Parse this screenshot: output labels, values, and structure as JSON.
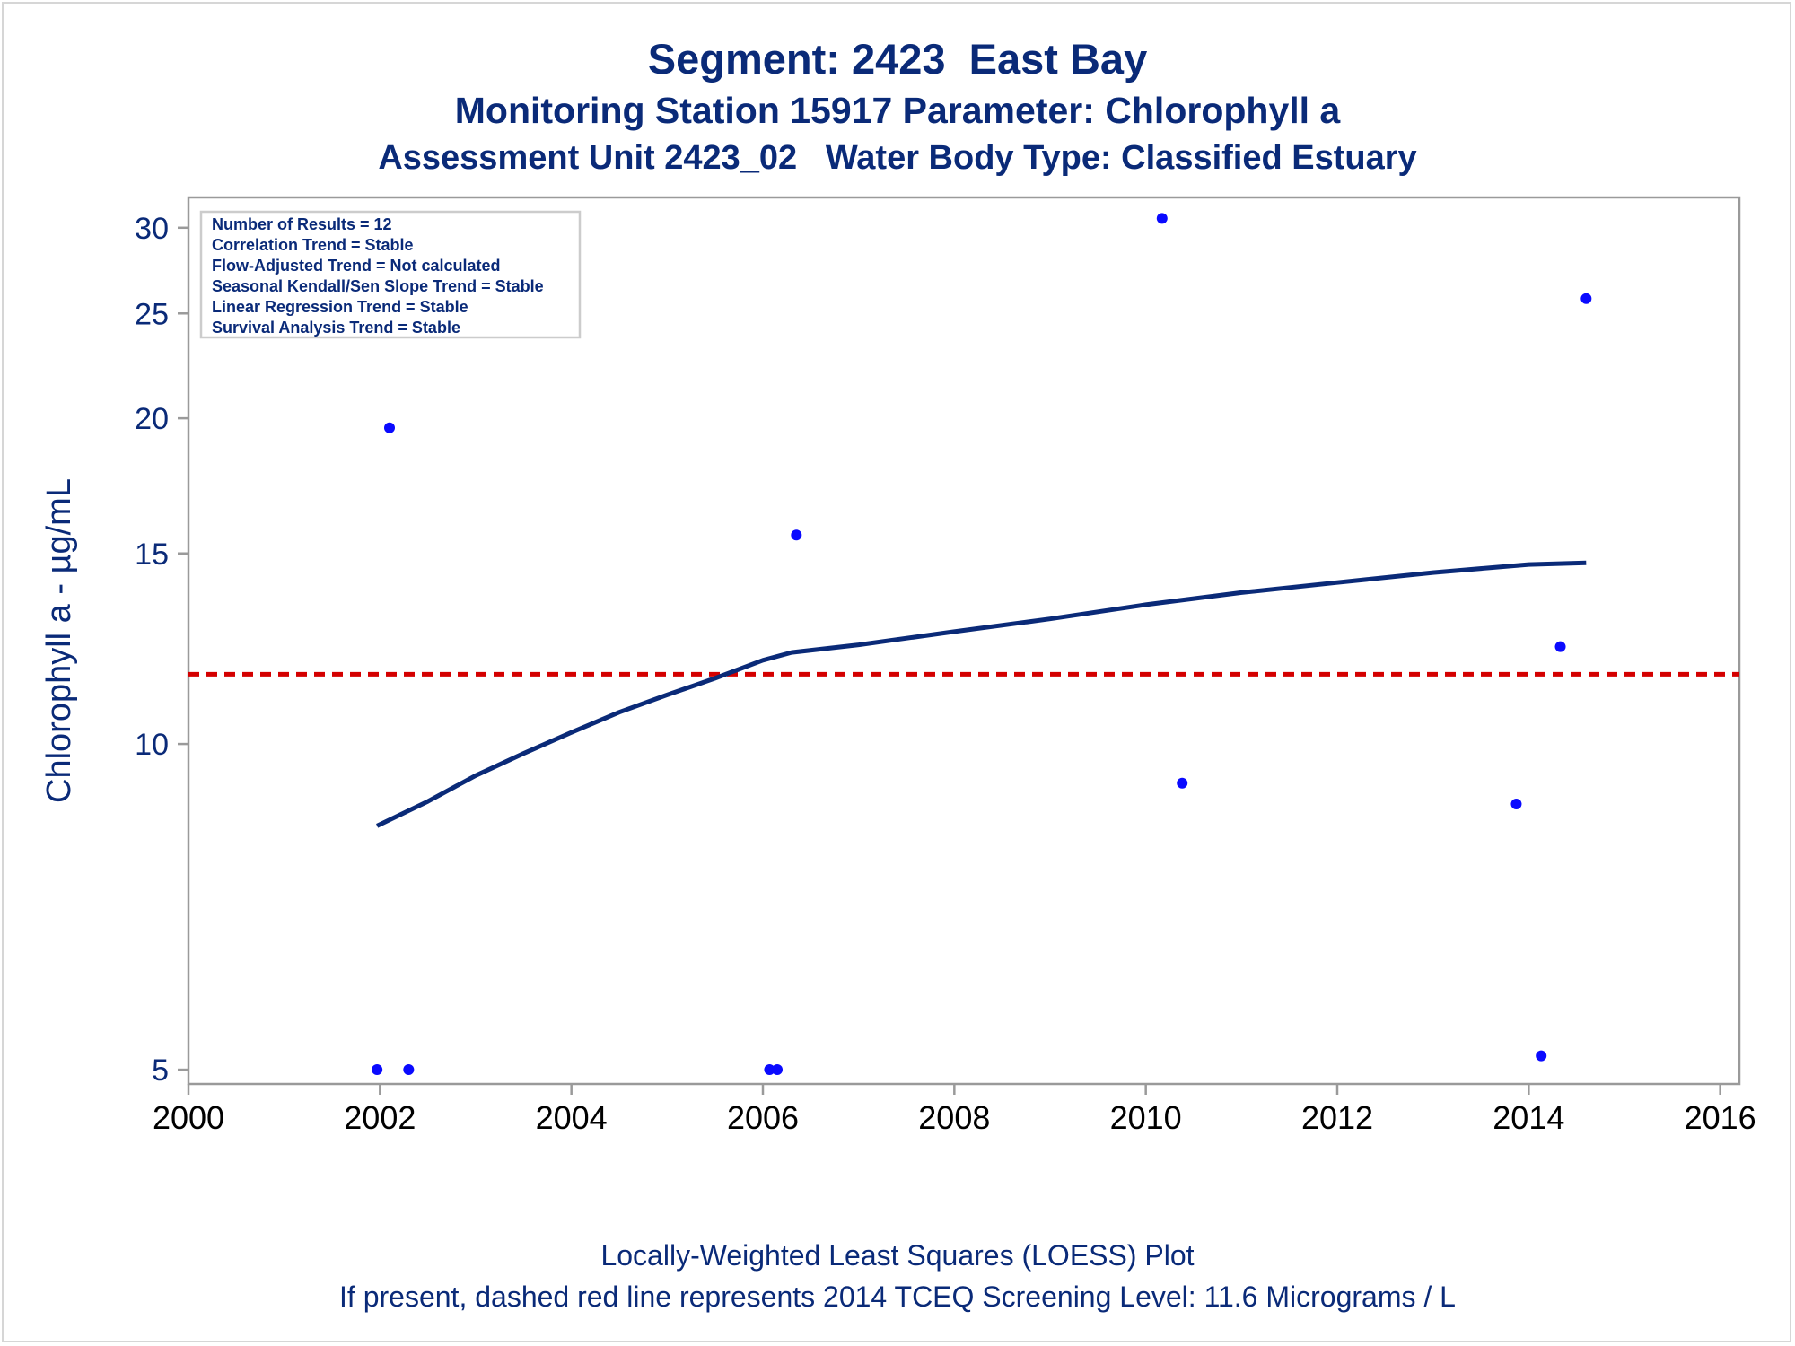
{
  "titles": {
    "line1": "Segment: 2423  East Bay",
    "line2": "Monitoring Station 15917 Parameter: Chlorophyll a",
    "line3": "Assessment Unit 2423_02   Water Body Type: Classified Estuary"
  },
  "footnotes": {
    "line1": "Locally-Weighted Least Squares (LOESS) Plot",
    "line2": "If present, dashed red line represents 2014 TCEQ Screening Level: 11.6 Micrograms / L"
  },
  "stats_box": [
    "Number of Results = 12",
    "Correlation Trend = Stable",
    "Flow-Adjusted Trend = Not calculated",
    "Seasonal Kendall/Sen Slope Trend = Stable",
    "Linear Regression Trend = Stable",
    "Survival Analysis Trend = Stable"
  ],
  "colors": {
    "text": "#0a2a78",
    "points": "#0a0aff",
    "loess": "#0a2a78",
    "screening": "#d40000",
    "axis": "#9a9a9a"
  },
  "chart_data": {
    "type": "scatter",
    "ylabel": "Chlorophyll a -  µg/mL",
    "xlabel": "",
    "x_scale": "linear",
    "y_scale": "log",
    "xlim": [
      2000,
      2016.2
    ],
    "ylim": [
      4.85,
      32
    ],
    "x_ticks": [
      2000,
      2002,
      2004,
      2006,
      2008,
      2010,
      2012,
      2014,
      2016
    ],
    "y_ticks": [
      5,
      10,
      15,
      20,
      25,
      30
    ],
    "grid": false,
    "legend": "inset top-left",
    "points": [
      {
        "x": 2001.97,
        "y": 5.0
      },
      {
        "x": 2002.1,
        "y": 19.6
      },
      {
        "x": 2002.3,
        "y": 5.0
      },
      {
        "x": 2006.07,
        "y": 5.0
      },
      {
        "x": 2006.15,
        "y": 5.0
      },
      {
        "x": 2006.35,
        "y": 15.6
      },
      {
        "x": 2010.17,
        "y": 30.6
      },
      {
        "x": 2010.38,
        "y": 9.2
      },
      {
        "x": 2013.87,
        "y": 8.8
      },
      {
        "x": 2014.13,
        "y": 5.15
      },
      {
        "x": 2014.33,
        "y": 12.3
      },
      {
        "x": 2014.6,
        "y": 25.8
      }
    ],
    "loess": [
      {
        "x": 2001.97,
        "y": 8.4
      },
      {
        "x": 2002.5,
        "y": 8.85
      },
      {
        "x": 2003.0,
        "y": 9.35
      },
      {
        "x": 2003.5,
        "y": 9.8
      },
      {
        "x": 2004.0,
        "y": 10.25
      },
      {
        "x": 2004.5,
        "y": 10.7
      },
      {
        "x": 2005.0,
        "y": 11.1
      },
      {
        "x": 2005.5,
        "y": 11.5
      },
      {
        "x": 2006.0,
        "y": 11.95
      },
      {
        "x": 2006.3,
        "y": 12.15
      },
      {
        "x": 2007.0,
        "y": 12.35
      },
      {
        "x": 2008.0,
        "y": 12.7
      },
      {
        "x": 2009.0,
        "y": 13.05
      },
      {
        "x": 2010.0,
        "y": 13.45
      },
      {
        "x": 2011.0,
        "y": 13.8
      },
      {
        "x": 2012.0,
        "y": 14.1
      },
      {
        "x": 2013.0,
        "y": 14.4
      },
      {
        "x": 2014.0,
        "y": 14.65
      },
      {
        "x": 2014.6,
        "y": 14.7
      }
    ],
    "screening_level": 11.6
  }
}
